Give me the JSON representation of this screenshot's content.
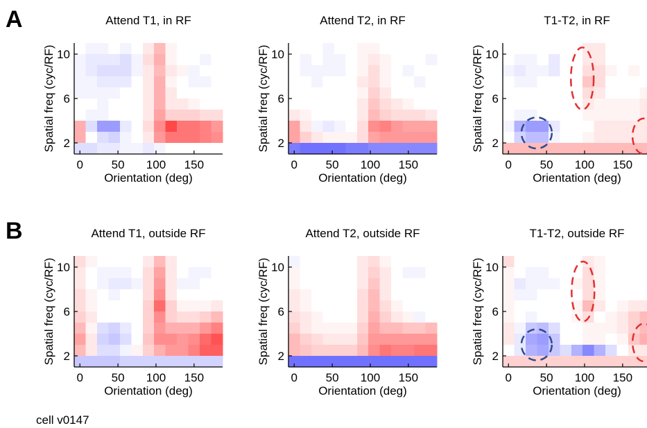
{
  "figure": {
    "panel_labels": [
      "A",
      "B"
    ],
    "footer": "cell v0147"
  },
  "chart_data": [
    {
      "type": "heatmap",
      "row": "A",
      "title": "Attend T1, in RF",
      "xlabel": "Orientation (deg)",
      "ylabel": "Spatial freq (cyc/RF)",
      "xticks": [
        0,
        50,
        100,
        150
      ],
      "yticks": [
        2,
        6,
        10
      ],
      "xlim": [
        -7.5,
        187.5
      ],
      "ylim": [
        1,
        11
      ],
      "nx": 13,
      "ny": 10,
      "grid": [
        [
          0.0,
          -0.05,
          -0.05,
          0.0,
          -0.05,
          0.0,
          0.1,
          0.3,
          0.05,
          0.0,
          0.0,
          0.0,
          0.0
        ],
        [
          -0.05,
          -0.1,
          -0.1,
          -0.1,
          -0.15,
          -0.05,
          0.15,
          0.35,
          0.05,
          0.0,
          0.0,
          -0.05,
          0.0
        ],
        [
          -0.05,
          -0.1,
          -0.15,
          -0.15,
          -0.15,
          -0.05,
          0.1,
          0.3,
          0.1,
          0.05,
          -0.05,
          0.0,
          0.0
        ],
        [
          -0.05,
          -0.05,
          -0.1,
          -0.1,
          -0.1,
          0.0,
          0.1,
          0.35,
          0.05,
          0.0,
          -0.05,
          -0.05,
          0.0
        ],
        [
          -0.05,
          -0.05,
          -0.05,
          -0.05,
          0.0,
          0.0,
          0.1,
          0.35,
          0.1,
          0.0,
          0.0,
          0.0,
          0.0
        ],
        [
          0.0,
          0.0,
          -0.05,
          0.0,
          0.0,
          0.0,
          0.1,
          0.35,
          0.1,
          0.1,
          0.05,
          0.0,
          0.0
        ],
        [
          0.0,
          -0.05,
          -0.05,
          0.0,
          0.0,
          0.0,
          0.1,
          0.4,
          0.2,
          0.2,
          0.2,
          0.15,
          0.15
        ],
        [
          0.35,
          -0.15,
          -0.45,
          -0.45,
          -0.1,
          0.0,
          0.15,
          0.5,
          0.8,
          0.6,
          0.6,
          0.55,
          0.45
        ],
        [
          0.35,
          0.0,
          -0.15,
          -0.2,
          -0.05,
          0.0,
          0.1,
          0.45,
          0.6,
          0.6,
          0.6,
          0.55,
          0.5
        ],
        [
          -0.15,
          -0.15,
          -0.1,
          -0.1,
          -0.05,
          -0.05,
          -0.1,
          -0.05,
          0.0,
          0.0,
          0.0,
          0.0,
          0.0
        ]
      ],
      "ellipses": []
    },
    {
      "type": "heatmap",
      "row": "A",
      "title": "Attend T2, in RF",
      "xlabel": "Orientation (deg)",
      "ylabel": "Spatial freq (cyc/RF)",
      "xticks": [
        0,
        50,
        100,
        150
      ],
      "yticks": [
        2,
        6,
        10
      ],
      "xlim": [
        -7.5,
        187.5
      ],
      "ylim": [
        1,
        11
      ],
      "nx": 13,
      "ny": 10,
      "grid": [
        [
          0.0,
          0.0,
          0.0,
          -0.05,
          0.0,
          0.0,
          0.05,
          0.05,
          0.0,
          0.0,
          0.0,
          0.0,
          0.0
        ],
        [
          0.0,
          -0.05,
          0.0,
          -0.05,
          -0.05,
          0.0,
          0.05,
          0.1,
          0.05,
          0.0,
          0.0,
          0.0,
          -0.05
        ],
        [
          0.0,
          -0.05,
          -0.05,
          -0.05,
          -0.05,
          0.0,
          0.05,
          0.15,
          0.05,
          0.0,
          -0.05,
          0.0,
          0.0
        ],
        [
          0.0,
          0.0,
          -0.05,
          0.0,
          0.0,
          0.0,
          0.1,
          0.15,
          0.05,
          0.0,
          0.0,
          -0.05,
          0.0
        ],
        [
          0.0,
          0.0,
          0.0,
          0.0,
          0.0,
          0.0,
          0.05,
          0.2,
          0.1,
          0.0,
          0.0,
          0.0,
          0.0
        ],
        [
          0.0,
          0.0,
          0.0,
          0.0,
          0.0,
          0.0,
          0.1,
          0.25,
          0.15,
          0.1,
          0.05,
          0.0,
          0.0
        ],
        [
          0.1,
          0.05,
          0.0,
          0.0,
          0.0,
          0.0,
          0.1,
          0.3,
          0.2,
          0.15,
          0.15,
          0.15,
          0.1
        ],
        [
          0.4,
          0.1,
          -0.05,
          -0.1,
          -0.05,
          0.0,
          0.15,
          0.5,
          0.55,
          0.45,
          0.4,
          0.4,
          0.4
        ],
        [
          0.4,
          0.2,
          0.1,
          0.05,
          0.05,
          0.05,
          0.15,
          0.4,
          0.45,
          0.45,
          0.45,
          0.45,
          0.45
        ],
        [
          -0.6,
          -0.65,
          -0.65,
          -0.65,
          -0.65,
          -0.6,
          -0.6,
          -0.55,
          -0.55,
          -0.55,
          -0.55,
          -0.55,
          -0.55
        ]
      ],
      "ellipses": []
    },
    {
      "type": "heatmap",
      "row": "A",
      "title": "T1-T2, in RF",
      "xlabel": "Orientation (deg)",
      "ylabel": "Spatial freq (cyc/RF)",
      "xticks": [
        0,
        50,
        100,
        150
      ],
      "yticks": [
        2,
        6,
        10
      ],
      "xlim": [
        -7.5,
        187.5
      ],
      "ylim": [
        1,
        11
      ],
      "nx": 13,
      "ny": 10,
      "grid": [
        [
          0.0,
          0.0,
          0.0,
          0.0,
          0.0,
          0.0,
          0.0,
          0.1,
          0.1,
          0.0,
          0.0,
          0.0,
          0.0
        ],
        [
          0.0,
          -0.05,
          -0.05,
          0.0,
          -0.1,
          0.0,
          0.0,
          0.1,
          0.1,
          0.0,
          0.0,
          0.0,
          0.0
        ],
        [
          -0.05,
          -0.1,
          -0.05,
          -0.05,
          -0.1,
          0.0,
          0.0,
          0.15,
          0.15,
          0.05,
          0.0,
          0.05,
          0.0
        ],
        [
          0.0,
          -0.05,
          -0.05,
          0.0,
          0.0,
          0.0,
          0.0,
          0.25,
          0.15,
          0.0,
          0.0,
          0.0,
          0.0
        ],
        [
          0.0,
          0.0,
          0.0,
          0.0,
          0.0,
          0.0,
          0.0,
          0.15,
          0.1,
          0.0,
          0.0,
          0.0,
          0.05
        ],
        [
          0.0,
          0.0,
          0.0,
          0.0,
          0.0,
          0.0,
          0.0,
          0.1,
          0.05,
          0.05,
          0.05,
          0.05,
          0.1
        ],
        [
          0.0,
          -0.05,
          -0.05,
          0.0,
          0.0,
          0.0,
          0.0,
          0.05,
          0.05,
          0.05,
          0.05,
          0.05,
          0.1
        ],
        [
          -0.05,
          -0.35,
          -0.45,
          -0.45,
          -0.1,
          0.0,
          0.0,
          0.0,
          0.1,
          0.1,
          0.1,
          0.1,
          0.1
        ],
        [
          0.0,
          -0.2,
          -0.3,
          -0.3,
          -0.05,
          0.0,
          0.0,
          0.05,
          0.1,
          0.1,
          0.1,
          0.1,
          0.1
        ],
        [
          0.3,
          0.3,
          0.3,
          0.3,
          0.3,
          0.3,
          0.3,
          0.3,
          0.3,
          0.3,
          0.3,
          0.3,
          0.3
        ]
      ],
      "ellipses": [
        {
          "color": "#2e4a8c",
          "cx": 37,
          "cy": 2.9,
          "rx": 20,
          "ry": 1.4
        },
        {
          "color": "#e03030",
          "cx": 97,
          "cy": 7.8,
          "rx": 15,
          "ry": 2.8
        },
        {
          "color": "#e03030",
          "cx": 178,
          "cy": 2.6,
          "rx": 15,
          "ry": 1.6
        }
      ]
    },
    {
      "type": "heatmap",
      "row": "B",
      "title": "Attend T1, outside RF",
      "xlabel": "Orientation (deg)",
      "ylabel": "Spatial freq (cyc/RF)",
      "xticks": [
        0,
        50,
        100,
        150
      ],
      "yticks": [
        2,
        6,
        10
      ],
      "xlim": [
        -7.5,
        187.5
      ],
      "ylim": [
        1,
        11
      ],
      "nx": 13,
      "ny": 10,
      "grid": [
        [
          0.15,
          0.05,
          0.0,
          0.0,
          0.0,
          0.0,
          0.1,
          0.3,
          0.1,
          0.0,
          0.0,
          0.0,
          0.0
        ],
        [
          0.1,
          0.0,
          -0.05,
          -0.05,
          -0.05,
          0.0,
          0.15,
          0.4,
          0.1,
          0.0,
          -0.05,
          -0.05,
          0.0
        ],
        [
          0.1,
          0.0,
          -0.05,
          -0.1,
          -0.1,
          -0.05,
          0.15,
          0.45,
          0.1,
          -0.05,
          -0.05,
          0.0,
          0.0
        ],
        [
          0.15,
          0.05,
          0.0,
          -0.05,
          0.0,
          0.0,
          0.15,
          0.5,
          0.1,
          0.0,
          0.0,
          0.0,
          0.0
        ],
        [
          0.15,
          0.05,
          0.0,
          0.0,
          0.0,
          0.0,
          0.2,
          0.65,
          0.2,
          0.05,
          0.05,
          0.05,
          0.1
        ],
        [
          0.2,
          0.1,
          0.0,
          0.0,
          0.0,
          0.0,
          0.2,
          0.5,
          0.2,
          0.15,
          0.15,
          0.2,
          0.3
        ],
        [
          0.3,
          0.05,
          -0.15,
          -0.2,
          -0.1,
          0.0,
          0.2,
          0.45,
          0.35,
          0.35,
          0.35,
          0.45,
          0.55
        ],
        [
          0.4,
          0.1,
          -0.2,
          -0.25,
          -0.15,
          0.0,
          0.25,
          0.5,
          0.5,
          0.45,
          0.5,
          0.65,
          0.75
        ],
        [
          0.3,
          0.1,
          -0.15,
          -0.15,
          -0.05,
          0.05,
          0.2,
          0.35,
          0.45,
          0.45,
          0.55,
          0.7,
          0.7
        ],
        [
          -0.25,
          -0.25,
          -0.25,
          -0.25,
          -0.2,
          -0.2,
          -0.2,
          -0.2,
          -0.2,
          -0.2,
          -0.2,
          -0.2,
          -0.2
        ]
      ],
      "ellipses": []
    },
    {
      "type": "heatmap",
      "row": "B",
      "title": "Attend T2, outside RF",
      "xlabel": "Orientation (deg)",
      "ylabel": "Spatial freq (cyc/RF)",
      "xticks": [
        0,
        50,
        100,
        150
      ],
      "yticks": [
        2,
        6,
        10
      ],
      "xlim": [
        -7.5,
        187.5
      ],
      "ylim": [
        1,
        11
      ],
      "nx": 13,
      "ny": 10,
      "grid": [
        [
          -0.05,
          0.0,
          0.0,
          0.0,
          0.0,
          0.0,
          0.1,
          0.15,
          0.05,
          0.0,
          0.0,
          0.0,
          0.0
        ],
        [
          0.05,
          0.0,
          0.0,
          0.0,
          0.0,
          0.0,
          0.1,
          0.2,
          0.1,
          0.0,
          -0.05,
          -0.05,
          0.0
        ],
        [
          0.05,
          0.0,
          0.0,
          0.0,
          0.0,
          0.0,
          0.1,
          0.25,
          0.1,
          0.0,
          0.0,
          0.0,
          0.0
        ],
        [
          0.1,
          0.05,
          0.0,
          0.0,
          0.0,
          0.0,
          0.15,
          0.3,
          0.1,
          0.0,
          0.0,
          0.0,
          0.0
        ],
        [
          0.1,
          0.05,
          0.0,
          0.0,
          0.0,
          0.0,
          0.15,
          0.3,
          0.15,
          0.05,
          0.0,
          0.0,
          0.0
        ],
        [
          0.15,
          0.1,
          0.05,
          0.0,
          0.0,
          0.0,
          0.15,
          0.35,
          0.2,
          0.1,
          0.05,
          -0.05,
          0.0
        ],
        [
          0.2,
          0.1,
          0.05,
          0.05,
          0.05,
          0.05,
          0.2,
          0.4,
          0.3,
          0.3,
          0.25,
          0.25,
          0.3
        ],
        [
          0.3,
          0.2,
          0.15,
          0.1,
          0.1,
          0.1,
          0.25,
          0.45,
          0.45,
          0.45,
          0.45,
          0.45,
          0.45
        ],
        [
          0.3,
          0.25,
          0.2,
          0.2,
          0.2,
          0.2,
          0.3,
          0.5,
          0.6,
          0.55,
          0.55,
          0.6,
          0.6
        ],
        [
          -0.65,
          -0.65,
          -0.65,
          -0.65,
          -0.65,
          -0.65,
          -0.65,
          -0.65,
          -0.65,
          -0.65,
          -0.65,
          -0.65,
          -0.65
        ]
      ],
      "ellipses": []
    },
    {
      "type": "heatmap",
      "row": "B",
      "title": "T1-T2, outside RF",
      "xlabel": "Orientation (deg)",
      "ylabel": "Spatial freq (cyc/RF)",
      "xticks": [
        0,
        50,
        100,
        150
      ],
      "yticks": [
        2,
        6,
        10
      ],
      "xlim": [
        -7.5,
        187.5
      ],
      "ylim": [
        1,
        11
      ],
      "nx": 13,
      "ny": 10,
      "grid": [
        [
          0.15,
          0.0,
          0.0,
          0.0,
          0.0,
          0.0,
          0.0,
          0.1,
          0.05,
          0.0,
          0.0,
          0.0,
          0.0
        ],
        [
          0.05,
          0.0,
          -0.05,
          -0.05,
          0.0,
          0.0,
          0.0,
          0.15,
          0.05,
          0.0,
          0.0,
          0.0,
          0.0
        ],
        [
          0.05,
          -0.1,
          -0.05,
          -0.05,
          -0.05,
          0.0,
          0.05,
          0.15,
          0.05,
          0.0,
          0.0,
          0.0,
          0.0
        ],
        [
          0.05,
          -0.05,
          -0.05,
          0.0,
          0.0,
          0.0,
          0.0,
          0.15,
          0.05,
          0.0,
          0.0,
          0.0,
          0.0
        ],
        [
          0.05,
          0.0,
          0.0,
          0.0,
          0.0,
          0.0,
          0.05,
          0.3,
          0.1,
          0.0,
          0.05,
          0.1,
          0.1
        ],
        [
          0.05,
          0.0,
          -0.05,
          0.0,
          0.0,
          0.0,
          0.05,
          0.15,
          0.0,
          0.05,
          0.1,
          0.2,
          0.3
        ],
        [
          0.1,
          -0.05,
          -0.25,
          -0.3,
          -0.15,
          0.0,
          0.0,
          0.05,
          0.05,
          0.05,
          0.1,
          0.2,
          0.3
        ],
        [
          0.1,
          -0.1,
          -0.4,
          -0.45,
          -0.25,
          0.0,
          0.0,
          0.05,
          0.05,
          0.0,
          0.05,
          0.25,
          0.35
        ],
        [
          0.0,
          -0.1,
          -0.35,
          -0.4,
          -0.25,
          -0.15,
          -0.35,
          -0.55,
          -0.35,
          -0.15,
          0.0,
          0.1,
          0.1
        ],
        [
          0.2,
          0.2,
          0.2,
          0.2,
          0.2,
          0.2,
          0.2,
          0.2,
          0.2,
          0.2,
          0.2,
          0.2,
          0.2
        ]
      ],
      "ellipses": [
        {
          "color": "#2e4a8c",
          "cx": 37,
          "cy": 3.0,
          "rx": 20,
          "ry": 1.4
        },
        {
          "color": "#e03030",
          "cx": 98,
          "cy": 7.8,
          "rx": 15,
          "ry": 2.7
        },
        {
          "color": "#e03030",
          "cx": 178,
          "cy": 3.2,
          "rx": 15,
          "ry": 1.7
        }
      ]
    }
  ],
  "colors": {
    "negative": "#2424ff",
    "positive": "#ff1a1a",
    "neutral": "#ffffff",
    "axis": "#000000"
  }
}
